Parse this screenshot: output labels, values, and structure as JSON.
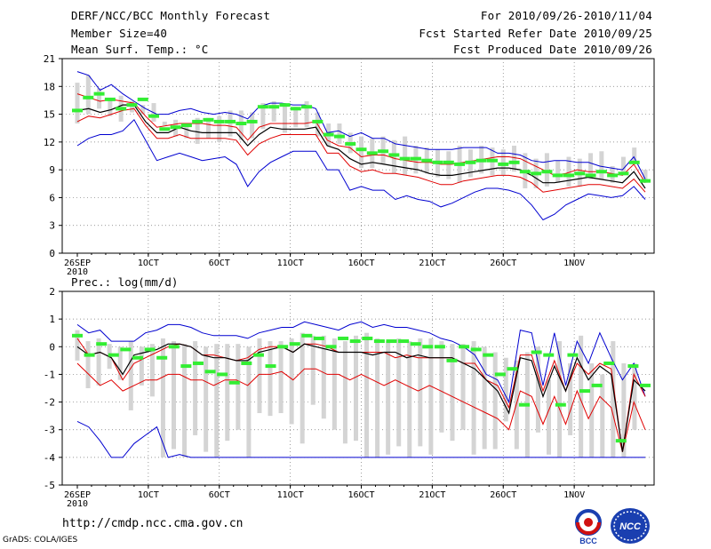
{
  "header": {
    "title": "DERF/NCC/BCC Monthly Forecast",
    "member_size": "Member Size=40",
    "variable": "Mean Surf. Temp.: °C",
    "period": "For 2010/09/26-2010/11/04",
    "refer_date": "Fcst Started Refer Date 2010/09/25",
    "produced_date": "Fcst Produced Date 2010/09/26"
  },
  "footer": {
    "url": "http://cmdp.ncc.cma.gov.cn",
    "grads": "GrADS: COLA/IGES",
    "logo_bcc": "BCC",
    "logo_ncc": "NCC"
  },
  "colors": {
    "blue": "#0000d0",
    "red": "#e00000",
    "black": "#000000",
    "box": "#d4d4d4",
    "green": "#33ee33",
    "grid": "#777777"
  },
  "chart_data": [
    {
      "type": "box-plume",
      "title": "Mean Surf. Temp.: °C",
      "ylim": [
        0,
        21
      ],
      "yticks": [
        0,
        3,
        6,
        9,
        12,
        15,
        18,
        21
      ],
      "xtick_labels": [
        "26SEP",
        "1OCT",
        "6OCT",
        "11OCT",
        "16OCT",
        "21OCT",
        "26OCT",
        "1NOV"
      ],
      "x_year_label": "2010",
      "days": 40,
      "series": {
        "max": [
          19.6,
          19.2,
          17.6,
          18.2,
          17.2,
          16.4,
          15.6,
          15.0,
          15.0,
          15.4,
          15.6,
          15.2,
          15.0,
          15.2,
          15.0,
          14.5,
          15.8,
          16.2,
          16.2,
          16.0,
          16.0,
          15.6,
          13.0,
          13.2,
          12.6,
          13.0,
          12.4,
          12.4,
          11.8,
          11.6,
          11.4,
          11.2,
          11.2,
          11.2,
          11.4,
          11.4,
          11.4,
          10.8,
          10.8,
          10.6,
          10.0,
          9.8,
          10.0,
          10.0,
          9.8,
          9.8,
          9.4,
          9.2,
          9.0,
          10.4,
          8.0
        ],
        "upper": [
          17.2,
          16.8,
          16.4,
          16.6,
          16.4,
          16.2,
          14.8,
          13.6,
          13.8,
          14.0,
          14.0,
          14.0,
          13.8,
          13.8,
          13.6,
          12.2,
          13.6,
          14.0,
          14.0,
          14.0,
          14.0,
          14.2,
          12.2,
          11.6,
          11.4,
          10.4,
          10.6,
          10.6,
          10.2,
          10.0,
          9.8,
          9.8,
          9.6,
          9.6,
          9.8,
          10.0,
          10.2,
          10.4,
          10.4,
          10.2,
          9.6,
          9.0,
          8.4,
          8.6,
          9.0,
          8.8,
          8.8,
          8.6,
          8.4,
          9.6,
          7.6
        ],
        "median": [
          15.4,
          15.6,
          15.2,
          15.5,
          16.0,
          16.0,
          14.2,
          13.0,
          13.0,
          13.6,
          13.2,
          13.0,
          13.0,
          13.0,
          13.0,
          11.6,
          12.8,
          13.6,
          13.4,
          13.4,
          13.4,
          13.6,
          11.6,
          11.2,
          10.2,
          9.6,
          9.8,
          9.6,
          9.4,
          9.2,
          9.0,
          8.6,
          8.4,
          8.4,
          8.6,
          8.8,
          9.0,
          9.2,
          9.2,
          9.0,
          8.4,
          7.6,
          7.6,
          7.8,
          8.0,
          8.2,
          8.0,
          7.8,
          7.6,
          8.8,
          7.0
        ],
        "lower": [
          14.2,
          14.8,
          14.6,
          15.0,
          15.4,
          15.6,
          13.8,
          12.4,
          12.4,
          12.8,
          12.4,
          12.4,
          12.4,
          12.4,
          12.2,
          10.6,
          11.8,
          12.4,
          12.8,
          12.8,
          12.8,
          12.8,
          10.8,
          10.8,
          9.4,
          8.8,
          9.0,
          8.6,
          8.6,
          8.4,
          8.2,
          7.8,
          7.4,
          7.4,
          7.8,
          8.0,
          8.2,
          8.4,
          8.4,
          8.2,
          7.6,
          6.6,
          6.8,
          7.0,
          7.2,
          7.4,
          7.4,
          7.2,
          7.0,
          8.0,
          6.6
        ],
        "min": [
          11.6,
          12.4,
          12.8,
          12.8,
          13.2,
          14.4,
          12.2,
          10.0,
          10.4,
          10.8,
          10.4,
          10.0,
          10.2,
          10.4,
          9.6,
          7.2,
          8.8,
          9.8,
          10.4,
          11.0,
          11.0,
          11.0,
          9.0,
          9.0,
          6.8,
          7.2,
          6.8,
          6.8,
          5.8,
          6.2,
          5.8,
          5.6,
          5.0,
          5.4,
          6.0,
          6.6,
          7.0,
          7.0,
          6.8,
          6.4,
          5.2,
          3.6,
          4.2,
          5.2,
          5.8,
          6.4,
          6.2,
          6.0,
          6.2,
          7.2,
          5.8
        ],
        "box_top": [
          18.4,
          19.2,
          17.8,
          16.6,
          17.0,
          16.4,
          16.0,
          16.2,
          14.2,
          14.4,
          13.8,
          14.6,
          14.6,
          14.8,
          15.4,
          15.4,
          15.2,
          16.2,
          16.4,
          16.0,
          15.8,
          16.4,
          15.2,
          14.0,
          14.0,
          13.0,
          12.6,
          12.4,
          12.6,
          12.2,
          12.6,
          11.6,
          11.4,
          11.2,
          11.0,
          11.6,
          11.2,
          11.6,
          11.4,
          11.2,
          11.6,
          10.8,
          10.2,
          10.8,
          10.0,
          10.4,
          10.2,
          10.8,
          11.0,
          9.4,
          10.4,
          11.4,
          9.0
        ],
        "box_bottom": [
          14.0,
          15.0,
          15.6,
          14.8,
          14.2,
          15.2,
          15.0,
          14.2,
          13.8,
          12.6,
          12.4,
          11.8,
          12.4,
          12.0,
          12.6,
          12.2,
          12.4,
          13.4,
          14.2,
          13.0,
          13.6,
          13.6,
          12.6,
          11.6,
          11.8,
          10.8,
          9.2,
          9.2,
          9.6,
          8.6,
          8.4,
          8.6,
          8.6,
          8.2,
          8.0,
          7.6,
          8.2,
          8.6,
          8.4,
          8.4,
          8.8,
          7.0,
          7.0,
          7.2,
          7.6,
          7.2,
          7.2,
          8.0,
          8.0,
          7.6,
          8.6,
          9.6,
          7.6
        ],
        "observed_marks": [
          15.4,
          16.8,
          17.2,
          16.6,
          15.6,
          16.0,
          16.6,
          14.8,
          13.4,
          13.6,
          13.8,
          14.2,
          14.4,
          14.2,
          14.2,
          14.0,
          14.2,
          15.8,
          15.8,
          16.0,
          15.6,
          15.8,
          14.2,
          12.8,
          12.6,
          11.8,
          11.2,
          10.8,
          11.0,
          10.6,
          10.2,
          10.2,
          10.0,
          9.8,
          9.8,
          9.6,
          9.8,
          10.0,
          10.0,
          9.6,
          9.8,
          8.8,
          8.6,
          8.8,
          8.4,
          8.4,
          8.6,
          8.4,
          8.8,
          8.4,
          8.6,
          9.8,
          7.8
        ]
      }
    },
    {
      "type": "box-plume",
      "title": "Prec.: log(mm/d)",
      "ylim": [
        -5,
        2
      ],
      "yticks": [
        -5,
        -4,
        -3,
        -2,
        -1,
        0,
        1,
        2
      ],
      "xtick_labels": [
        "26SEP",
        "1OCT",
        "6OCT",
        "11OCT",
        "16OCT",
        "21OCT",
        "26OCT",
        "1NOV"
      ],
      "x_year_label": "2010",
      "days": 40,
      "series": {
        "max": [
          0.8,
          0.5,
          0.6,
          0.2,
          0.2,
          0.2,
          0.5,
          0.6,
          0.8,
          0.8,
          0.7,
          0.5,
          0.4,
          0.4,
          0.4,
          0.3,
          0.5,
          0.6,
          0.7,
          0.7,
          0.9,
          0.8,
          0.7,
          0.6,
          0.8,
          0.9,
          0.7,
          0.8,
          0.7,
          0.7,
          0.6,
          0.5,
          0.3,
          0.2,
          0.0,
          -0.3,
          -1.0,
          -1.2,
          -2.0,
          0.6,
          0.5,
          -1.4,
          0.5,
          -1.4,
          0.2,
          -0.6,
          0.5,
          -0.4,
          -1.2,
          -0.6,
          -1.8
        ],
        "upper": [
          0.3,
          -0.3,
          -0.2,
          -0.4,
          -1.2,
          -0.6,
          -0.4,
          -0.2,
          0.0,
          0.1,
          0.0,
          -0.3,
          -0.3,
          -0.4,
          -0.5,
          -0.4,
          -0.1,
          0.0,
          0.0,
          -0.2,
          0.1,
          0.1,
          0.0,
          -0.2,
          -0.2,
          -0.2,
          -0.2,
          -0.2,
          -0.4,
          -0.3,
          -0.4,
          -0.4,
          -0.4,
          -0.4,
          -0.6,
          -0.6,
          -1.2,
          -1.4,
          -2.2,
          -0.3,
          -0.3,
          -1.6,
          -0.5,
          -1.6,
          -0.6,
          -1.0,
          -0.6,
          -0.8,
          -3.8,
          -1.0,
          -1.8
        ],
        "median": [
          0.0,
          -0.3,
          -0.2,
          -0.4,
          -1.0,
          -0.3,
          -0.2,
          -0.1,
          0.1,
          0.1,
          0.0,
          -0.3,
          -0.4,
          -0.4,
          -0.5,
          -0.5,
          -0.2,
          -0.1,
          0.0,
          -0.2,
          0.1,
          0.0,
          -0.1,
          -0.2,
          -0.2,
          -0.2,
          -0.3,
          -0.2,
          -0.2,
          -0.4,
          -0.3,
          -0.4,
          -0.4,
          -0.4,
          -0.6,
          -0.8,
          -1.2,
          -1.6,
          -2.4,
          -0.4,
          -0.5,
          -1.8,
          -0.7,
          -1.6,
          -0.4,
          -1.2,
          -0.7,
          -1.0,
          -3.8,
          -1.2,
          -1.6
        ],
        "lower": [
          -0.6,
          -1.0,
          -1.4,
          -1.2,
          -1.6,
          -1.4,
          -1.2,
          -1.2,
          -1.0,
          -1.0,
          -1.2,
          -1.2,
          -1.4,
          -1.2,
          -1.2,
          -1.4,
          -1.0,
          -1.0,
          -0.9,
          -1.2,
          -0.8,
          -0.8,
          -1.0,
          -1.0,
          -1.2,
          -1.0,
          -1.2,
          -1.4,
          -1.2,
          -1.4,
          -1.6,
          -1.4,
          -1.6,
          -1.8,
          -2.0,
          -2.2,
          -2.4,
          -2.6,
          -3.0,
          -1.6,
          -1.8,
          -2.8,
          -1.8,
          -2.8,
          -1.6,
          -2.6,
          -1.8,
          -2.2,
          -3.8,
          -2.0,
          -3.0
        ],
        "min": [
          -2.7,
          -2.9,
          -3.4,
          -4.0,
          -4.0,
          -3.5,
          -3.2,
          -2.9,
          -4.0,
          -3.9,
          -4.0,
          -4.0,
          -4.0,
          -4.0,
          -4.0,
          -4.0,
          -4.0,
          -4.0,
          -4.0,
          -4.0,
          -4.0,
          -4.0,
          -4.0,
          -4.0,
          -4.0,
          -4.0,
          -4.0,
          -4.0,
          -4.0,
          -4.0,
          -4.0,
          -4.0,
          -4.0,
          -4.0,
          -4.0,
          -4.0,
          -4.0,
          -4.0,
          -4.0,
          -4.0,
          -4.0,
          -4.0,
          -4.0,
          -4.0,
          -4.0,
          -4.0,
          -4.0,
          -4.0,
          -4.0,
          -4.0,
          -4.0
        ],
        "box_top": [
          0.6,
          0.2,
          0.3,
          0.1,
          0.0,
          0.2,
          0.0,
          0.1,
          0.3,
          0.2,
          0.1,
          0.2,
          0.0,
          0.1,
          0.1,
          0.1,
          0.0,
          0.3,
          0.2,
          0.2,
          0.3,
          0.5,
          0.4,
          0.4,
          0.3,
          0.2,
          0.4,
          0.5,
          0.3,
          0.2,
          0.3,
          0.2,
          0.3,
          0.3,
          0.2,
          0.1,
          0.1,
          0.2,
          0.0,
          -0.2,
          -0.4,
          -0.5,
          -0.2,
          0.0,
          -1.2,
          0.2,
          -0.6,
          0.4,
          -0.6,
          -1.0,
          0.2,
          -0.6,
          -0.6,
          0.0
        ],
        "box_bottom": [
          -0.5,
          -1.5,
          -1.4,
          -0.8,
          -1.2,
          -2.3,
          -1.4,
          -1.8,
          -4.0,
          -3.7,
          -4.0,
          -3.2,
          -3.8,
          -4.0,
          -3.4,
          -3.0,
          -4.0,
          -2.4,
          -2.5,
          -2.4,
          -2.8,
          -3.5,
          -2.1,
          -2.6,
          -3.0,
          -3.5,
          -3.4,
          -4.0,
          -4.0,
          -3.9,
          -3.6,
          -4.0,
          -3.6,
          -3.9,
          -3.1,
          -3.4,
          -3.0,
          -3.9,
          -3.7,
          -3.7,
          -2.7,
          -3.7,
          -4.0,
          -3.1,
          -3.9,
          -4.0,
          -3.2,
          -4.0,
          -4.0,
          -4.0,
          -4.0,
          -4.0,
          -3.0
        ],
        "observed_marks": [
          0.4,
          -0.3,
          0.1,
          -0.3,
          -0.1,
          -0.4,
          -0.1,
          -0.4,
          0.0,
          -0.7,
          -0.6,
          -0.9,
          -1.0,
          -1.3,
          -0.6,
          -0.3,
          -0.7,
          0.0,
          0.1,
          0.4,
          0.3,
          0.0,
          0.3,
          0.2,
          0.3,
          0.2,
          0.2,
          0.2,
          0.1,
          0.0,
          0.0,
          -0.5,
          0.0,
          -0.1,
          -0.3,
          -1.0,
          -0.8,
          -2.1,
          -0.2,
          -0.3,
          -2.1,
          -0.3,
          -1.6,
          -1.4,
          -0.6,
          -3.4,
          -0.7,
          -1.4
        ]
      }
    }
  ]
}
